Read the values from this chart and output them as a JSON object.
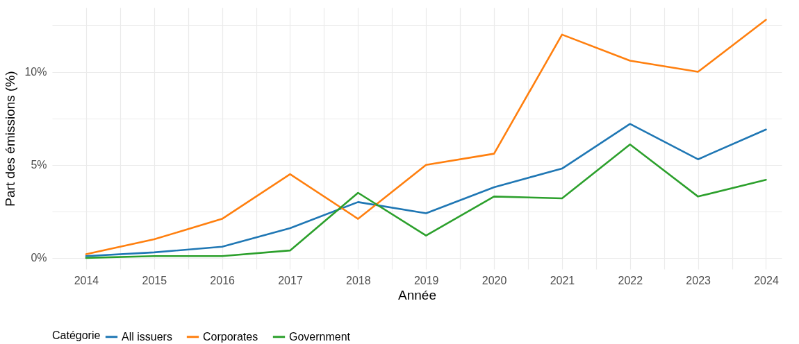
{
  "chart_data": {
    "type": "line",
    "xlabel": "Année",
    "ylabel": "Part des émissions (%)",
    "legend_title": "Catégorie",
    "x": [
      2014,
      2015,
      2016,
      2017,
      2018,
      2019,
      2020,
      2021,
      2022,
      2023,
      2024
    ],
    "series": [
      {
        "name": "All issuers",
        "color": "#1f77b4",
        "values": [
          0.1,
          0.3,
          0.6,
          1.6,
          3.0,
          2.4,
          3.8,
          4.8,
          7.2,
          5.3,
          6.9
        ]
      },
      {
        "name": "Corporates",
        "color": "#ff7f0e",
        "values": [
          0.2,
          1.0,
          2.1,
          4.5,
          2.1,
          5.0,
          5.6,
          12.0,
          10.6,
          10.0,
          12.8
        ]
      },
      {
        "name": "Government",
        "color": "#2ca02c",
        "values": [
          0.0,
          0.1,
          0.1,
          0.4,
          3.5,
          1.2,
          3.3,
          3.2,
          6.1,
          3.3,
          4.2
        ]
      }
    ],
    "xlim": [
      2013.5,
      2024.23
    ],
    "ylim": [
      -0.6,
      13.45
    ],
    "xticks": [
      2014,
      {
        "value": 2014.5,
        "label": null
      },
      2015,
      {
        "value": 2015.5,
        "label": null
      },
      2016,
      {
        "value": 2016.5,
        "label": null
      },
      2017,
      {
        "value": 2017.5,
        "label": null
      },
      2018,
      {
        "value": 2018.5,
        "label": null
      },
      2019,
      {
        "value": 2019.5,
        "label": null
      },
      2020,
      {
        "value": 2020.5,
        "label": null
      },
      2021,
      {
        "value": 2021.5,
        "label": null
      },
      2022,
      {
        "value": 2022.5,
        "label": null
      },
      2023,
      {
        "value": 2023.5,
        "label": null
      },
      2024
    ],
    "yticks": [
      {
        "value": 0,
        "label": "0%"
      },
      {
        "value": 2.5,
        "label": null
      },
      {
        "value": 5,
        "label": "5%"
      },
      {
        "value": 7.5,
        "label": null
      },
      {
        "value": 10,
        "label": "10%"
      },
      {
        "value": 12.5,
        "label": null
      }
    ],
    "grid": true,
    "legend": "bottom",
    "marker": "none",
    "line_style": "solid"
  }
}
